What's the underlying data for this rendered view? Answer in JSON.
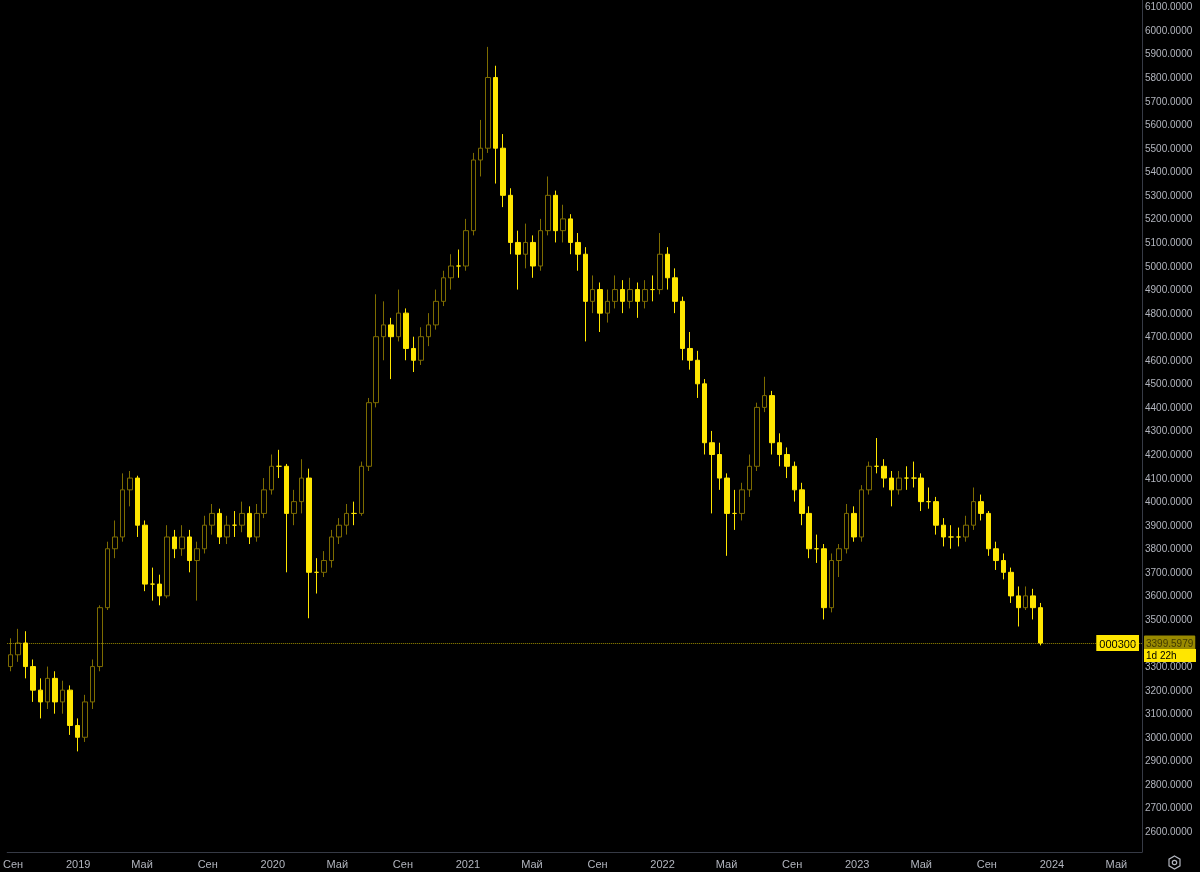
{
  "chart_data": {
    "type": "candlestick",
    "x": [
      "2018-08-27",
      "2018-09-10",
      "2018-09-24",
      "2018-10-08",
      "2018-10-22",
      "2018-11-05",
      "2018-11-19",
      "2018-12-03",
      "2018-12-17",
      "2018-12-31",
      "2019-01-14",
      "2019-01-28",
      "2019-02-11",
      "2019-02-25",
      "2019-03-11",
      "2019-03-25",
      "2019-04-08",
      "2019-04-22",
      "2019-05-06",
      "2019-05-20",
      "2019-06-03",
      "2019-06-17",
      "2019-07-01",
      "2019-07-15",
      "2019-07-29",
      "2019-08-12",
      "2019-08-26",
      "2019-09-09",
      "2019-09-23",
      "2019-10-07",
      "2019-10-21",
      "2019-11-04",
      "2019-11-18",
      "2019-12-02",
      "2019-12-16",
      "2019-12-30",
      "2020-01-13",
      "2020-01-27",
      "2020-02-10",
      "2020-02-24",
      "2020-03-09",
      "2020-03-23",
      "2020-04-06",
      "2020-04-20",
      "2020-05-04",
      "2020-05-18",
      "2020-06-01",
      "2020-06-15",
      "2020-06-29",
      "2020-07-13",
      "2020-07-27",
      "2020-08-10",
      "2020-08-24",
      "2020-09-07",
      "2020-09-21",
      "2020-10-05",
      "2020-10-19",
      "2020-11-02",
      "2020-11-16",
      "2020-11-30",
      "2020-12-14",
      "2020-12-28",
      "2021-01-11",
      "2021-01-25",
      "2021-02-08",
      "2021-02-22",
      "2021-03-08",
      "2021-03-22",
      "2021-04-05",
      "2021-04-19",
      "2021-05-03",
      "2021-05-17",
      "2021-05-31",
      "2021-06-14",
      "2021-06-28",
      "2021-07-12",
      "2021-07-26",
      "2021-08-09",
      "2021-08-23",
      "2021-09-06",
      "2021-09-20",
      "2021-10-04",
      "2021-10-18",
      "2021-11-01",
      "2021-11-15",
      "2021-11-29",
      "2021-12-13",
      "2021-12-27",
      "2022-01-10",
      "2022-01-24",
      "2022-02-07",
      "2022-02-21",
      "2022-03-07",
      "2022-03-21",
      "2022-04-04",
      "2022-04-18",
      "2022-05-02",
      "2022-05-16",
      "2022-05-30",
      "2022-06-13",
      "2022-06-27",
      "2022-07-11",
      "2022-07-25",
      "2022-08-08",
      "2022-08-22",
      "2022-09-05",
      "2022-09-19",
      "2022-10-03",
      "2022-10-17",
      "2022-10-31",
      "2022-11-14",
      "2022-11-28",
      "2022-12-12",
      "2022-12-26",
      "2023-01-09",
      "2023-01-23",
      "2023-02-06",
      "2023-02-20",
      "2023-03-06",
      "2023-03-20",
      "2023-04-03",
      "2023-04-17",
      "2023-05-01",
      "2023-05-15",
      "2023-05-29",
      "2023-06-12",
      "2023-06-26",
      "2023-07-10",
      "2023-07-24",
      "2023-08-07",
      "2023-08-21",
      "2023-09-04",
      "2023-09-18",
      "2023-10-02",
      "2023-10-16",
      "2023-10-30",
      "2023-11-13",
      "2023-11-27",
      "2023-12-11"
    ],
    "ohlc": [
      [
        3300,
        3420,
        3280,
        3350
      ],
      [
        3350,
        3460,
        3320,
        3400
      ],
      [
        3400,
        3450,
        3250,
        3300
      ],
      [
        3300,
        3330,
        3150,
        3200
      ],
      [
        3200,
        3250,
        3080,
        3150
      ],
      [
        3150,
        3300,
        3120,
        3250
      ],
      [
        3250,
        3280,
        3100,
        3150
      ],
      [
        3150,
        3240,
        3100,
        3200
      ],
      [
        3200,
        3220,
        3010,
        3050
      ],
      [
        3050,
        3080,
        2940,
        3000
      ],
      [
        3000,
        3180,
        2980,
        3150
      ],
      [
        3150,
        3330,
        3120,
        3300
      ],
      [
        3300,
        3560,
        3280,
        3550
      ],
      [
        3550,
        3830,
        3540,
        3800
      ],
      [
        3800,
        3920,
        3760,
        3850
      ],
      [
        3850,
        4120,
        3830,
        4050
      ],
      [
        4050,
        4130,
        3980,
        4100
      ],
      [
        4100,
        4110,
        3850,
        3900
      ],
      [
        3900,
        3920,
        3620,
        3650
      ],
      [
        3650,
        3720,
        3580,
        3650
      ],
      [
        3650,
        3690,
        3560,
        3600
      ],
      [
        3600,
        3900,
        3590,
        3850
      ],
      [
        3850,
        3880,
        3760,
        3800
      ],
      [
        3800,
        3900,
        3770,
        3850
      ],
      [
        3850,
        3880,
        3700,
        3750
      ],
      [
        3750,
        3830,
        3580,
        3800
      ],
      [
        3800,
        3940,
        3780,
        3900
      ],
      [
        3900,
        3990,
        3860,
        3950
      ],
      [
        3950,
        3970,
        3820,
        3850
      ],
      [
        3850,
        3940,
        3820,
        3900
      ],
      [
        3900,
        3960,
        3850,
        3900
      ],
      [
        3900,
        4000,
        3870,
        3950
      ],
      [
        3950,
        3980,
        3820,
        3850
      ],
      [
        3850,
        3990,
        3830,
        3950
      ],
      [
        3950,
        4100,
        3930,
        4050
      ],
      [
        4050,
        4200,
        4030,
        4150
      ],
      [
        4150,
        4220,
        4100,
        4150
      ],
      [
        4150,
        4160,
        3700,
        3950
      ],
      [
        3950,
        4050,
        3900,
        4000
      ],
      [
        4000,
        4180,
        3950,
        4100
      ],
      [
        4100,
        4140,
        3505,
        3700
      ],
      [
        3700,
        3760,
        3610,
        3700
      ],
      [
        3700,
        3790,
        3680,
        3750
      ],
      [
        3750,
        3880,
        3720,
        3850
      ],
      [
        3850,
        3930,
        3820,
        3900
      ],
      [
        3900,
        3990,
        3860,
        3950
      ],
      [
        3950,
        4000,
        3900,
        3950
      ],
      [
        3950,
        4170,
        3940,
        4150
      ],
      [
        4150,
        4440,
        4130,
        4420
      ],
      [
        4420,
        4880,
        4400,
        4700
      ],
      [
        4700,
        4850,
        4600,
        4750
      ],
      [
        4750,
        4780,
        4520,
        4700
      ],
      [
        4700,
        4900,
        4680,
        4800
      ],
      [
        4800,
        4820,
        4600,
        4650
      ],
      [
        4650,
        4700,
        4550,
        4600
      ],
      [
        4600,
        4740,
        4580,
        4700
      ],
      [
        4700,
        4800,
        4660,
        4750
      ],
      [
        4750,
        4900,
        4730,
        4850
      ],
      [
        4850,
        4980,
        4830,
        4950
      ],
      [
        4950,
        5050,
        4900,
        5000
      ],
      [
        5000,
        5070,
        4950,
        5000
      ],
      [
        5000,
        5200,
        4980,
        5150
      ],
      [
        5150,
        5480,
        5130,
        5450
      ],
      [
        5450,
        5620,
        5380,
        5500
      ],
      [
        5500,
        5930,
        5480,
        5800
      ],
      [
        5800,
        5850,
        5350,
        5500
      ],
      [
        5500,
        5560,
        5250,
        5300
      ],
      [
        5300,
        5330,
        5050,
        5100
      ],
      [
        5100,
        5150,
        4900,
        5050
      ],
      [
        5050,
        5180,
        4990,
        5100
      ],
      [
        5100,
        5130,
        4950,
        5000
      ],
      [
        5000,
        5200,
        4980,
        5150
      ],
      [
        5150,
        5380,
        5130,
        5300
      ],
      [
        5300,
        5320,
        5100,
        5150
      ],
      [
        5150,
        5260,
        5100,
        5200
      ],
      [
        5200,
        5220,
        5050,
        5100
      ],
      [
        5100,
        5140,
        4980,
        5050
      ],
      [
        5050,
        5080,
        4680,
        4850
      ],
      [
        4850,
        4960,
        4800,
        4900
      ],
      [
        4900,
        4930,
        4720,
        4800
      ],
      [
        4800,
        4900,
        4760,
        4850
      ],
      [
        4850,
        4960,
        4820,
        4900
      ],
      [
        4900,
        4940,
        4800,
        4850
      ],
      [
        4850,
        4950,
        4820,
        4900
      ],
      [
        4900,
        4930,
        4780,
        4850
      ],
      [
        4850,
        4940,
        4820,
        4900
      ],
      [
        4900,
        4960,
        4850,
        4900
      ],
      [
        4900,
        5140,
        4880,
        5050
      ],
      [
        5050,
        5080,
        4900,
        4950
      ],
      [
        4950,
        4990,
        4800,
        4850
      ],
      [
        4850,
        4870,
        4600,
        4650
      ],
      [
        4650,
        4720,
        4560,
        4600
      ],
      [
        4600,
        4640,
        4440,
        4500
      ],
      [
        4500,
        4520,
        4200,
        4250
      ],
      [
        4250,
        4300,
        3950,
        4200
      ],
      [
        4200,
        4250,
        4050,
        4100
      ],
      [
        4100,
        4120,
        3770,
        3950
      ],
      [
        3950,
        4050,
        3880,
        3950
      ],
      [
        3950,
        4080,
        3920,
        4050
      ],
      [
        4050,
        4200,
        4020,
        4150
      ],
      [
        4150,
        4420,
        4130,
        4400
      ],
      [
        4400,
        4530,
        4380,
        4450
      ],
      [
        4450,
        4470,
        4200,
        4250
      ],
      [
        4250,
        4290,
        4150,
        4200
      ],
      [
        4200,
        4230,
        4100,
        4150
      ],
      [
        4150,
        4170,
        4000,
        4050
      ],
      [
        4050,
        4080,
        3900,
        3950
      ],
      [
        3950,
        3980,
        3760,
        3800
      ],
      [
        3800,
        3860,
        3740,
        3800
      ],
      [
        3800,
        3820,
        3500,
        3550
      ],
      [
        3550,
        3780,
        3530,
        3750
      ],
      [
        3750,
        3820,
        3680,
        3800
      ],
      [
        3800,
        3990,
        3780,
        3950
      ],
      [
        3950,
        3980,
        3830,
        3850
      ],
      [
        3850,
        4070,
        3830,
        4050
      ],
      [
        4050,
        4170,
        4030,
        4150
      ],
      [
        4150,
        4270,
        4120,
        4150
      ],
      [
        4150,
        4180,
        4060,
        4100
      ],
      [
        4100,
        4130,
        3980,
        4050
      ],
      [
        4050,
        4130,
        4030,
        4100
      ],
      [
        4100,
        4150,
        4050,
        4100
      ],
      [
        4100,
        4170,
        4060,
        4100
      ],
      [
        4100,
        4120,
        3960,
        4000
      ],
      [
        4000,
        4060,
        3970,
        4000
      ],
      [
        4000,
        4020,
        3860,
        3900
      ],
      [
        3900,
        3930,
        3810,
        3850
      ],
      [
        3850,
        3900,
        3800,
        3850
      ],
      [
        3850,
        3890,
        3810,
        3850
      ],
      [
        3850,
        3940,
        3830,
        3900
      ],
      [
        3900,
        4060,
        3880,
        4000
      ],
      [
        4000,
        4030,
        3920,
        3950
      ],
      [
        3950,
        3960,
        3770,
        3800
      ],
      [
        3800,
        3830,
        3710,
        3750
      ],
      [
        3750,
        3780,
        3670,
        3700
      ],
      [
        3700,
        3720,
        3570,
        3600
      ],
      [
        3600,
        3640,
        3470,
        3550
      ],
      [
        3550,
        3640,
        3540,
        3600
      ],
      [
        3600,
        3630,
        3500,
        3550
      ],
      [
        3550,
        3570,
        3390,
        3400
      ]
    ],
    "colors": [
      "#7d6c00",
      "#7d6c00",
      "#ffe600",
      "#ffe600",
      "#ffe600",
      "#7d6c00",
      "#ffe600",
      "#7d6c00",
      "#ffe600",
      "#ffe600",
      "#7d6c00",
      "#7d6c00",
      "#7d6c00",
      "#7d6c00",
      "#7d6c00",
      "#7d6c00",
      "#7d6c00",
      "#ffe600",
      "#ffe600",
      "#ffe600",
      "#ffe600",
      "#7d6c00",
      "#ffe600",
      "#7d6c00",
      "#ffe600",
      "#7d6c00",
      "#7d6c00",
      "#7d6c00",
      "#ffe600",
      "#7d6c00",
      "#ffe600",
      "#7d6c00",
      "#ffe600",
      "#7d6c00",
      "#7d6c00",
      "#7d6c00",
      "#ffe600",
      "#ffe600",
      "#7d6c00",
      "#7d6c00",
      "#ffe600",
      "#ffe600",
      "#7d6c00",
      "#7d6c00",
      "#7d6c00",
      "#7d6c00",
      "#ffe600",
      "#7d6c00",
      "#7d6c00",
      "#7d6c00",
      "#7d6c00",
      "#ffe600",
      "#7d6c00",
      "#ffe600",
      "#ffe600",
      "#7d6c00",
      "#7d6c00",
      "#7d6c00",
      "#7d6c00",
      "#7d6c00",
      "#ffe600",
      "#7d6c00",
      "#7d6c00",
      "#7d6c00",
      "#7d6c00",
      "#ffe600",
      "#ffe600",
      "#ffe600",
      "#ffe600",
      "#7d6c00",
      "#ffe600",
      "#7d6c00",
      "#7d6c00",
      "#ffe600",
      "#7d6c00",
      "#ffe600",
      "#ffe600",
      "#ffe600",
      "#7d6c00",
      "#ffe600",
      "#7d6c00",
      "#7d6c00",
      "#ffe600",
      "#7d6c00",
      "#ffe600",
      "#7d6c00",
      "#ffe600",
      "#7d6c00",
      "#ffe600",
      "#ffe600",
      "#ffe600",
      "#ffe600",
      "#ffe600",
      "#ffe600",
      "#ffe600",
      "#ffe600",
      "#ffe600",
      "#ffe600",
      "#7d6c00",
      "#7d6c00",
      "#7d6c00",
      "#7d6c00",
      "#ffe600",
      "#ffe600",
      "#ffe600",
      "#ffe600",
      "#ffe600",
      "#ffe600",
      "#ffe600",
      "#ffe600",
      "#7d6c00",
      "#7d6c00",
      "#7d6c00",
      "#ffe600",
      "#7d6c00",
      "#7d6c00",
      "#ffe600",
      "#ffe600",
      "#ffe600",
      "#7d6c00",
      "#ffe600",
      "#ffe600",
      "#ffe600",
      "#ffe600",
      "#ffe600",
      "#ffe600",
      "#ffe600",
      "#ffe600",
      "#7d6c00",
      "#7d6c00",
      "#ffe600",
      "#ffe600",
      "#ffe600",
      "#ffe600",
      "#ffe600",
      "#ffe600",
      "#7d6c00",
      "#ffe600",
      "#ffe600"
    ],
    "xlim": [
      "2018-08-21",
      "2024-06-18"
    ],
    "xticks": [
      {
        "value": "2018-09-01",
        "label": "Сен"
      },
      {
        "value": "2019-01-01",
        "label": "2019"
      },
      {
        "value": "2019-05-01",
        "label": "Май"
      },
      {
        "value": "2019-09-01",
        "label": "Сен"
      },
      {
        "value": "2020-01-01",
        "label": "2020"
      },
      {
        "value": "2020-05-01",
        "label": "Май"
      },
      {
        "value": "2020-09-01",
        "label": "Сен"
      },
      {
        "value": "2021-01-01",
        "label": "2021"
      },
      {
        "value": "2021-05-01",
        "label": "Май"
      },
      {
        "value": "2021-09-01",
        "label": "Сен"
      },
      {
        "value": "2022-01-01",
        "label": "2022"
      },
      {
        "value": "2022-05-01",
        "label": "Май"
      },
      {
        "value": "2022-09-01",
        "label": "Сен"
      },
      {
        "value": "2023-01-01",
        "label": "2023"
      },
      {
        "value": "2023-05-01",
        "label": "Май"
      },
      {
        "value": "2023-09-01",
        "label": "Сен"
      },
      {
        "value": "2024-01-01",
        "label": "2024"
      },
      {
        "value": "2024-05-01",
        "label": "Май"
      }
    ],
    "ylim": [
      2513,
      6129
    ],
    "yticks": [
      {
        "value": 2600,
        "label": "2600.0000"
      },
      {
        "value": 2700,
        "label": "2700.0000"
      },
      {
        "value": 2800,
        "label": "2800.0000"
      },
      {
        "value": 2900,
        "label": "2900.0000"
      },
      {
        "value": 3000,
        "label": "3000.0000"
      },
      {
        "value": 3100,
        "label": "3100.0000"
      },
      {
        "value": 3200,
        "label": "3200.0000"
      },
      {
        "value": 3300,
        "label": "3300.0000"
      },
      {
        "value": 3500,
        "label": "3500.0000"
      },
      {
        "value": 3600,
        "label": "3600.0000"
      },
      {
        "value": 3700,
        "label": "3700.0000"
      },
      {
        "value": 3800,
        "label": "3800.0000"
      },
      {
        "value": 3900,
        "label": "3900.0000"
      },
      {
        "value": 4000,
        "label": "4000.0000"
      },
      {
        "value": 4100,
        "label": "4100.0000"
      },
      {
        "value": 4200,
        "label": "4200.0000"
      },
      {
        "value": 4300,
        "label": "4300.0000"
      },
      {
        "value": 4400,
        "label": "4400.0000"
      },
      {
        "value": 4500,
        "label": "4500.0000"
      },
      {
        "value": 4600,
        "label": "4600.0000"
      },
      {
        "value": 4700,
        "label": "4700.0000"
      },
      {
        "value": 4800,
        "label": "4800.0000"
      },
      {
        "value": 4900,
        "label": "4900.0000"
      },
      {
        "value": 5000,
        "label": "5000.0000"
      },
      {
        "value": 5100,
        "label": "5100.0000"
      },
      {
        "value": 5200,
        "label": "5200.0000"
      },
      {
        "value": 5300,
        "label": "5300.0000"
      },
      {
        "value": 5400,
        "label": "5400.0000"
      },
      {
        "value": 5500,
        "label": "5500.0000"
      },
      {
        "value": 5600,
        "label": "5600.0000"
      },
      {
        "value": 5700,
        "label": "5700.0000"
      },
      {
        "value": 5800,
        "label": "5800.0000"
      },
      {
        "value": 5900,
        "label": "5900.0000"
      },
      {
        "value": 6000,
        "label": "6000.0000"
      },
      {
        "value": 6100,
        "label": "6100.0000"
      }
    ],
    "ref_lines": [
      {
        "axis": "y",
        "value": 3399.5979,
        "label": "3399.5979",
        "color": "#ffe600",
        "line_style": "dotted"
      }
    ],
    "annotations": [
      "000300",
      "1d 22h"
    ],
    "grid": false
  }
}
